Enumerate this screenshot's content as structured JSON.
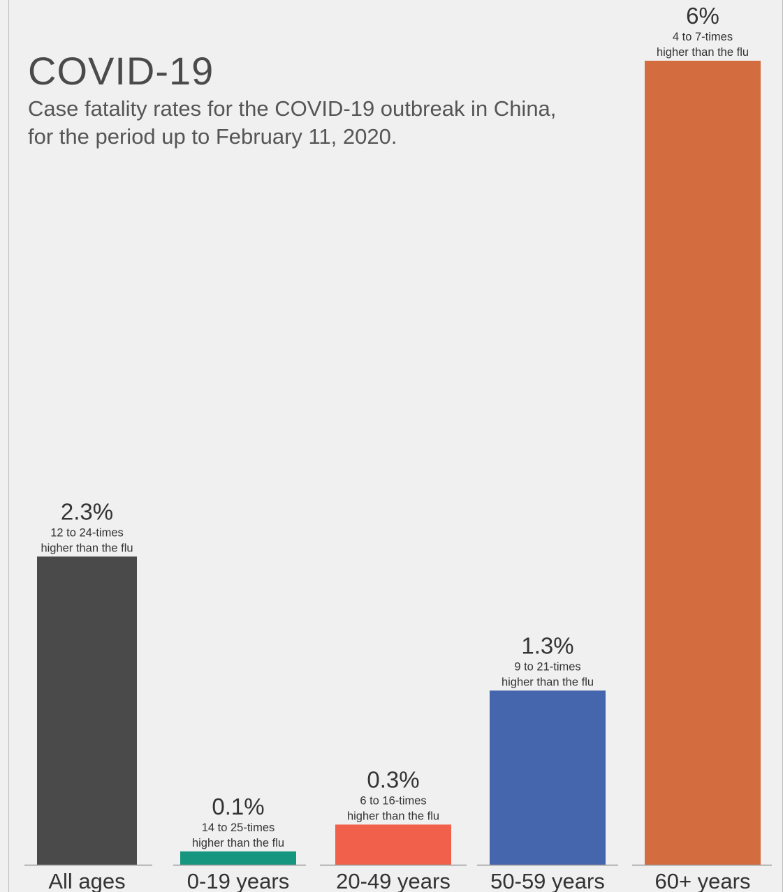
{
  "chart_data": {
    "type": "bar",
    "title": "COVID-19",
    "subtitle_lines": [
      "Case fatality rates for the COVID-19 outbreak in China,",
      "for the period  up to February 11, 2020."
    ],
    "categories": [
      "All ages",
      "0-19 years",
      "20-49 years",
      "50-59 years",
      "60+ years"
    ],
    "values": [
      2.3,
      0.1,
      0.3,
      1.3,
      6
    ],
    "value_labels": [
      "2.3%",
      "0.1%",
      "0.3%",
      "1.3%",
      "6%"
    ],
    "annotations": [
      [
        "12 to 24-times",
        "higher than the flu"
      ],
      [
        "14 to 25-times",
        "higher than the flu"
      ],
      [
        "6 to 16-times",
        "higher than the flu"
      ],
      [
        "9 to 21-times",
        "higher than the flu"
      ],
      [
        "4 to 7-times",
        "higher than the flu"
      ]
    ],
    "colors": [
      "#4a4a4a",
      "#16967f",
      "#f0604a",
      "#4566ad",
      "#d36d40"
    ],
    "xlabel": "",
    "ylabel": "",
    "ylim": [
      0,
      6
    ],
    "grid": false,
    "legend": false
  }
}
